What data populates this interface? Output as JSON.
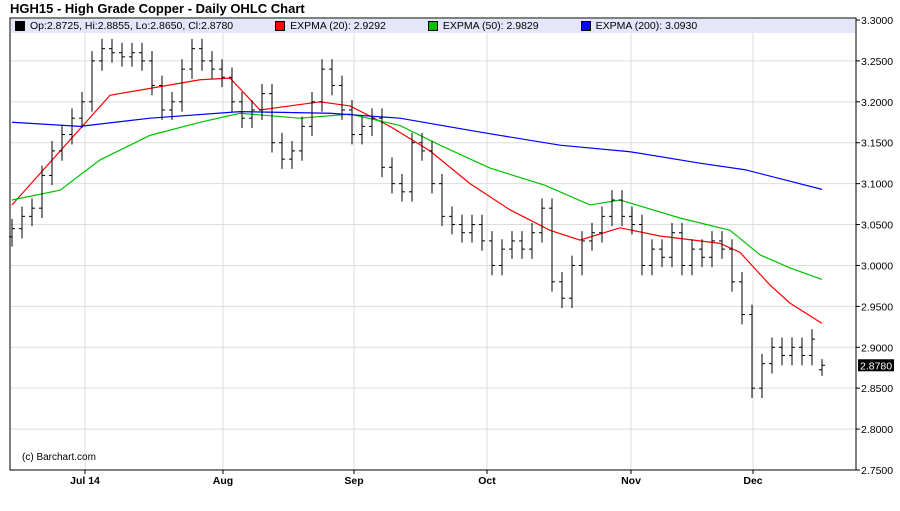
{
  "title": "HGH15 - High Grade Copper - Daily OHLC Chart",
  "copyright": "(c) Barchart.com",
  "legend": {
    "ohlc": "Op:2.8725, Hi:2.8855, Lo:2.8650, Cl:2.8780",
    "ema20": "EXPMA (20): 2.9292",
    "ema50": "EXPMA (50): 2.9829",
    "ema200": "EXPMA (200): 3.0930"
  },
  "colors": {
    "bars": "#000000",
    "ema20": "#ff0000",
    "ema50": "#00c000",
    "ema200": "#0000ff",
    "legend_bg": "#e6e6fa",
    "grid": "#dddddd"
  },
  "chart_data": {
    "type": "ohlc",
    "ylim": [
      2.75,
      3.3
    ],
    "y_ticks": [
      "3.3000",
      "3.2500",
      "3.2000",
      "3.1500",
      "3.1000",
      "3.0500",
      "3.0000",
      "2.9500",
      "2.9000",
      "2.8500",
      "2.8000",
      "2.7500"
    ],
    "x_ticks": [
      {
        "label": "Jul 14",
        "bar": 7.3
      },
      {
        "label": "Aug",
        "bar": 21.1
      },
      {
        "label": "Sep",
        "bar": 34.2
      },
      {
        "label": "Oct",
        "bar": 47.5
      },
      {
        "label": "Nov",
        "bar": 61.9
      },
      {
        "label": "Dec",
        "bar": 74.1
      }
    ],
    "last_price_label": "2.8780",
    "last_bar": {
      "open": 2.8725,
      "high": 2.8855,
      "low": 2.865,
      "close": 2.878
    },
    "close": [
      3.045,
      3.06,
      3.07,
      3.11,
      3.14,
      3.16,
      3.18,
      3.2,
      3.25,
      3.265,
      3.26,
      3.255,
      3.26,
      3.25,
      3.22,
      3.19,
      3.2,
      3.24,
      3.265,
      3.25,
      3.24,
      3.23,
      3.2,
      3.18,
      3.19,
      3.21,
      3.15,
      3.13,
      3.14,
      3.17,
      3.2,
      3.24,
      3.22,
      3.19,
      3.16,
      3.17,
      3.18,
      3.12,
      3.1,
      3.09,
      3.15,
      3.14,
      3.1,
      3.06,
      3.05,
      3.04,
      3.05,
      3.03,
      3.0,
      3.02,
      3.03,
      3.02,
      3.04,
      3.07,
      2.98,
      2.96,
      3.0,
      3.03,
      3.04,
      3.06,
      3.08,
      3.06,
      3.05,
      3.0,
      3.02,
      3.01,
      3.04,
      3.0,
      3.02,
      3.01,
      3.03,
      3.02,
      2.98,
      2.94,
      2.85,
      2.88,
      2.9,
      2.89,
      2.9,
      2.89,
      2.91,
      2.878
    ],
    "series": [
      {
        "name": "EXPMA (20)",
        "color": "#ff0000",
        "points": [
          [
            0,
            3.074
          ],
          [
            9.8,
            3.208
          ],
          [
            18.8,
            3.227
          ],
          [
            21.8,
            3.229
          ],
          [
            24.8,
            3.19
          ],
          [
            30.8,
            3.2
          ],
          [
            33.8,
            3.195
          ],
          [
            37.8,
            3.17
          ],
          [
            41.8,
            3.14
          ],
          [
            45.8,
            3.1
          ],
          [
            49.8,
            3.068
          ],
          [
            53.8,
            3.043
          ],
          [
            56.8,
            3.031
          ],
          [
            60.8,
            3.046
          ],
          [
            64.8,
            3.036
          ],
          [
            70.8,
            3.027
          ],
          [
            72.8,
            3.016
          ],
          [
            75.8,
            2.976
          ],
          [
            77.8,
            2.954
          ],
          [
            81,
            2.9292
          ]
        ]
      },
      {
        "name": "EXPMA (50)",
        "color": "#00c000",
        "points": [
          [
            0,
            3.08
          ],
          [
            4.8,
            3.092
          ],
          [
            8.8,
            3.129
          ],
          [
            13.8,
            3.159
          ],
          [
            18.8,
            3.175
          ],
          [
            22.8,
            3.186
          ],
          [
            28.8,
            3.18
          ],
          [
            33.8,
            3.185
          ],
          [
            38.8,
            3.171
          ],
          [
            42.8,
            3.147
          ],
          [
            47.8,
            3.119
          ],
          [
            53.3,
            3.098
          ],
          [
            57.8,
            3.074
          ],
          [
            60.8,
            3.08
          ],
          [
            66.8,
            3.058
          ],
          [
            71.8,
            3.043
          ],
          [
            74.8,
            3.013
          ],
          [
            77.8,
            2.997
          ],
          [
            81,
            2.9829
          ]
        ]
      },
      {
        "name": "EXPMA (200)",
        "color": "#0000ff",
        "points": [
          [
            0,
            3.175
          ],
          [
            6.8,
            3.17
          ],
          [
            13.8,
            3.18
          ],
          [
            22.8,
            3.188
          ],
          [
            31.8,
            3.186
          ],
          [
            38.8,
            3.18
          ],
          [
            46.8,
            3.163
          ],
          [
            54.8,
            3.147
          ],
          [
            61.8,
            3.139
          ],
          [
            68.8,
            3.125
          ],
          [
            73.3,
            3.117
          ],
          [
            81,
            3.093
          ]
        ]
      }
    ]
  }
}
